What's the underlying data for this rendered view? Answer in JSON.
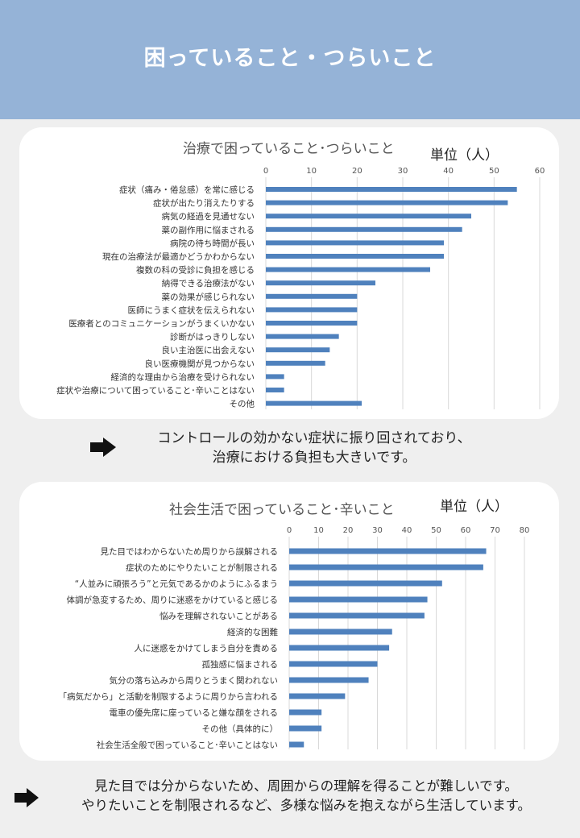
{
  "banner": {
    "title": "困っていること・つらいこと"
  },
  "chart_data": [
    {
      "type": "bar",
      "orientation": "horizontal",
      "title": "治療で困っていること･つらいこと",
      "unit_label": "単位（人）",
      "xlim": [
        0,
        60
      ],
      "ticks": [
        0,
        10,
        20,
        30,
        40,
        50,
        60
      ],
      "grid": true,
      "color": "#4f81bd",
      "categories": [
        "症状（痛み・倦怠感）を常に感じる",
        "症状が出たり消えたりする",
        "病気の経過を見通せない",
        "薬の副作用に悩まされる",
        "病院の待ち時間が長い",
        "現在の治療法が最適かどうかわからない",
        "複数の科の受診に負担を感じる",
        "納得できる治療法がない",
        "薬の効果が感じられない",
        "医師にうまく症状を伝えられない",
        "医療者とのコミュニケーションがうまくいかない",
        "診断がはっきりしない",
        "良い主治医に出会えない",
        "良い医療機関が見つからない",
        "経済的な理由から治療を受けられない",
        "症状や治療について困っていること･辛いことはない",
        "その他"
      ],
      "values": [
        55,
        53,
        45,
        43,
        39,
        39,
        36,
        24,
        20,
        20,
        20,
        16,
        14,
        13,
        4,
        4,
        21
      ]
    },
    {
      "type": "bar",
      "orientation": "horizontal",
      "title": "社会生活で困っていること･辛いこと",
      "unit_label": "単位（人）",
      "xlim": [
        0,
        80
      ],
      "ticks": [
        0,
        10,
        20,
        30,
        40,
        50,
        60,
        70,
        80
      ],
      "grid": true,
      "color": "#4f81bd",
      "categories": [
        "見た目ではわからないため周りから誤解される",
        "症状のためにやりたいことが制限される",
        "“人並みに頑張ろう”と元気であるかのようにふるまう",
        "体調が急変するため、周りに迷惑をかけていると感じる",
        "悩みを理解されないことがある",
        "経済的な困難",
        "人に迷惑をかけてしまう自分を責める",
        "孤独感に悩まされる",
        "気分の落ち込みから周りとうまく関われない",
        "「病気だから」と活動を制限するように周りから言われる",
        "電車の優先席に座っていると嫌な顔をされる",
        "その他（具体的に）",
        "社会生活全般で困っていること･辛いことはない"
      ],
      "values": [
        67,
        66,
        52,
        47,
        46,
        35,
        34,
        30,
        27,
        19,
        11,
        11,
        5
      ]
    }
  ],
  "notes": [
    {
      "lines": [
        "コントロールの効かない症状に振り回されており、",
        "治療における負担も大きいです。"
      ]
    },
    {
      "lines": [
        "見た目では分からないため、周囲からの理解を得ることが難しいです。",
        "やりたいことを制限されるなど、多様な悩みを抱えながら生活しています。"
      ]
    }
  ]
}
